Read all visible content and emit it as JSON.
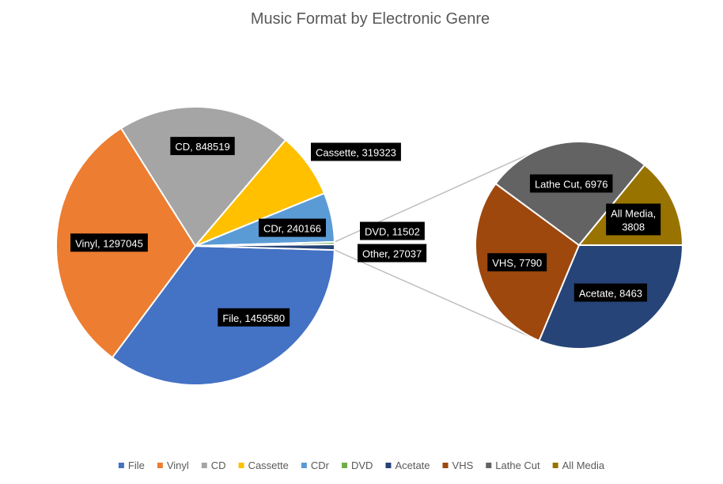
{
  "chart_data": {
    "type": "pie",
    "subtype": "pie-of-pie",
    "title": "Music Format by Electronic Genre",
    "slices": [
      {
        "label": "File",
        "value": 1459580,
        "color": "#4472C4"
      },
      {
        "label": "Vinyl",
        "value": 1297045,
        "color": "#ED7D31"
      },
      {
        "label": "CD",
        "value": 848519,
        "color": "#A5A5A5"
      },
      {
        "label": "Cassette",
        "value": 319323,
        "color": "#FFC000"
      },
      {
        "label": "CDr",
        "value": 240166,
        "color": "#5B9BD5"
      },
      {
        "label": "DVD",
        "value": 11502,
        "color": "#70AD47"
      },
      {
        "label": "Other",
        "value": 27037,
        "color": "#264478"
      }
    ],
    "secondary": [
      {
        "label": "Acetate",
        "value": 8463,
        "color": "#264478"
      },
      {
        "label": "VHS",
        "value": 7790,
        "color": "#9E480E"
      },
      {
        "label": "Lathe Cut",
        "value": 6976,
        "color": "#636363"
      },
      {
        "label": "All Media",
        "value": 3808,
        "color": "#997300"
      }
    ],
    "legend": [
      {
        "label": "File",
        "color": "#4472C4"
      },
      {
        "label": "Vinyl",
        "color": "#ED7D31"
      },
      {
        "label": "CD",
        "color": "#A5A5A5"
      },
      {
        "label": "Cassette",
        "color": "#FFC000"
      },
      {
        "label": "CDr",
        "color": "#5B9BD5"
      },
      {
        "label": "DVD",
        "color": "#70AD47"
      },
      {
        "label": "Acetate",
        "color": "#264478"
      },
      {
        "label": "VHS",
        "color": "#9E480E"
      },
      {
        "label": "Lathe Cut",
        "color": "#636363"
      },
      {
        "label": "All Media",
        "color": "#997300"
      }
    ],
    "legend_position": "bottom"
  }
}
